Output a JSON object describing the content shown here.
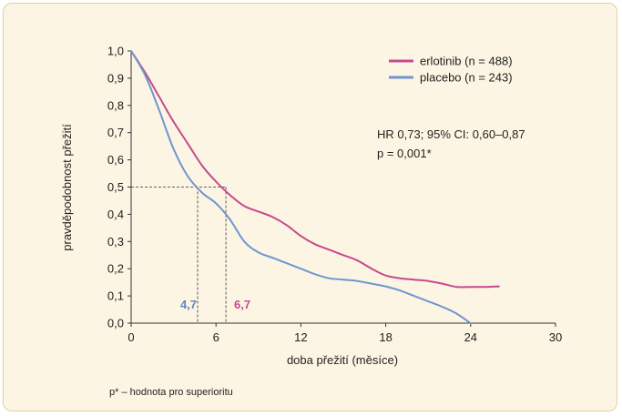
{
  "chart_data": {
    "type": "line",
    "xlabel": "doba přežití (měsíce)",
    "ylabel": "pravděpodobnost přežití",
    "xlim": [
      0,
      30
    ],
    "ylim": [
      0,
      1
    ],
    "x_ticks": [
      "0",
      "6",
      "12",
      "18",
      "24",
      "30"
    ],
    "y_ticks": [
      "0,0",
      "0,1",
      "0,2",
      "0,3",
      "0,4",
      "0,5",
      "0,6",
      "0,7",
      "0,8",
      "0,9",
      "1,0"
    ],
    "grid": false,
    "legend_position": "top-right",
    "series": [
      {
        "name": "erlotinib (n = 488)",
        "color": "#c64a8e",
        "points": [
          [
            0,
            1.0
          ],
          [
            1,
            0.92
          ],
          [
            2,
            0.83
          ],
          [
            3,
            0.74
          ],
          [
            4,
            0.66
          ],
          [
            5,
            0.58
          ],
          [
            6,
            0.52
          ],
          [
            7,
            0.47
          ],
          [
            8,
            0.43
          ],
          [
            9,
            0.41
          ],
          [
            10,
            0.39
          ],
          [
            11,
            0.36
          ],
          [
            12,
            0.32
          ],
          [
            13,
            0.29
          ],
          [
            14,
            0.27
          ],
          [
            15,
            0.25
          ],
          [
            16,
            0.23
          ],
          [
            17,
            0.2
          ],
          [
            18,
            0.175
          ],
          [
            19,
            0.165
          ],
          [
            20,
            0.16
          ],
          [
            21,
            0.155
          ],
          [
            22,
            0.145
          ],
          [
            23,
            0.133
          ],
          [
            24,
            0.133
          ],
          [
            25,
            0.133
          ],
          [
            26,
            0.135
          ]
        ]
      },
      {
        "name": "placebo (n = 243)",
        "color": "#6f96cf",
        "points": [
          [
            0,
            1.0
          ],
          [
            1,
            0.91
          ],
          [
            2,
            0.78
          ],
          [
            3,
            0.64
          ],
          [
            4,
            0.54
          ],
          [
            5,
            0.48
          ],
          [
            6,
            0.44
          ],
          [
            7,
            0.38
          ],
          [
            8,
            0.3
          ],
          [
            9,
            0.26
          ],
          [
            10,
            0.24
          ],
          [
            11,
            0.22
          ],
          [
            12,
            0.2
          ],
          [
            13,
            0.18
          ],
          [
            14,
            0.165
          ],
          [
            15,
            0.16
          ],
          [
            16,
            0.155
          ],
          [
            17,
            0.145
          ],
          [
            18,
            0.135
          ],
          [
            19,
            0.12
          ],
          [
            20,
            0.1
          ],
          [
            21,
            0.08
          ],
          [
            22,
            0.06
          ],
          [
            23,
            0.035
          ],
          [
            24,
            0.0
          ]
        ]
      }
    ],
    "median_line_y": 0.5,
    "medians": [
      {
        "x": 4.7,
        "label": "4,7",
        "color": "#5f86c4"
      },
      {
        "x": 6.7,
        "label": "6,7",
        "color": "#c64a8e"
      }
    ],
    "annotations": {
      "hr": "HR 0,73; 95% CI: 0,60–0,87",
      "p": "p = 0,001*"
    },
    "footnote": "p* – hodnota pro superioritu"
  }
}
